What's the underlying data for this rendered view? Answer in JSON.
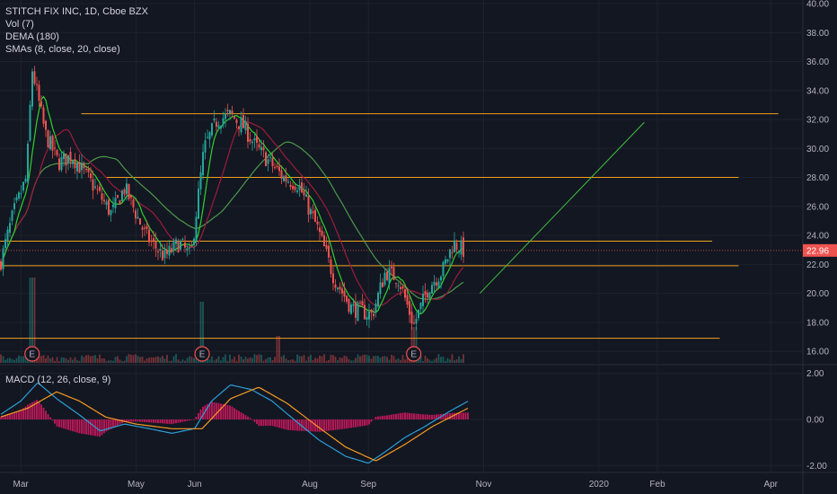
{
  "chart_data": [
    {
      "type": "candlestick",
      "title": "STITCH FIX INC, 1D, Cboe BZX",
      "indicators": [
        "Vol (7)",
        "DEMA (180)",
        "SMAs (8, close, 20, close)"
      ],
      "last_price": 22.96,
      "ylim": [
        15.2,
        40.0
      ],
      "y_ticks": [
        "40.00",
        "38.00",
        "36.00",
        "34.00",
        "32.00",
        "30.00",
        "28.00",
        "26.00",
        "24.00",
        "22.00",
        "20.00",
        "18.00",
        "16.00"
      ],
      "x_ticks": [
        "Mar",
        "May",
        "Jun",
        "Aug",
        "Sep",
        "Nov",
        "2020",
        "Feb",
        "Apr"
      ],
      "earnings_markers": [
        "E",
        "E",
        "E"
      ],
      "price_path": [
        [
          "2019-02-18",
          22.0
        ],
        [
          "2019-02-25",
          25.5
        ],
        [
          "2019-03-04",
          28.0
        ],
        [
          "2019-03-07",
          35.5
        ],
        [
          "2019-03-14",
          31.0
        ],
        [
          "2019-03-21",
          29.0
        ],
        [
          "2019-03-28",
          29.5
        ],
        [
          "2019-04-08",
          27.5
        ],
        [
          "2019-04-18",
          25.5
        ],
        [
          "2019-04-25",
          27.3
        ],
        [
          "2019-05-06",
          24.0
        ],
        [
          "2019-05-16",
          22.5
        ],
        [
          "2019-05-24",
          23.5
        ],
        [
          "2019-05-30",
          22.5
        ],
        [
          "2019-06-06",
          30.0
        ],
        [
          "2019-06-13",
          32.0
        ],
        [
          "2019-06-20",
          32.3
        ],
        [
          "2019-06-27",
          31.5
        ],
        [
          "2019-07-04",
          30.0
        ],
        [
          "2019-07-18",
          28.0
        ],
        [
          "2019-07-26",
          27.5
        ],
        [
          "2019-08-05",
          24.5
        ],
        [
          "2019-08-14",
          21.0
        ],
        [
          "2019-08-23",
          19.0
        ],
        [
          "2019-09-03",
          18.5
        ],
        [
          "2019-09-10",
          21.5
        ],
        [
          "2019-09-17",
          21.0
        ],
        [
          "2019-09-25",
          17.8
        ],
        [
          "2019-10-03",
          20.5
        ],
        [
          "2019-10-10",
          21.5
        ],
        [
          "2019-10-16",
          23.5
        ],
        [
          "2019-10-22",
          22.9
        ]
      ],
      "horizontal_lines": [
        {
          "y": 32.4,
          "from": "2019-04-02",
          "to": "2020-04-05"
        },
        {
          "y": 28.0,
          "from": "2019-04-15",
          "to": "2020-03-15"
        },
        {
          "y": 23.6,
          "from": "2019-02-18",
          "to": "2020-03-01"
        },
        {
          "y": 21.9,
          "from": "2019-02-18",
          "to": "2020-03-15"
        },
        {
          "y": 16.9,
          "from": "2019-02-18",
          "to": "2020-03-05"
        }
      ],
      "projection_line": {
        "from": [
          "2019-10-30",
          20.0
        ],
        "to": [
          "2020-01-25",
          31.8
        ]
      },
      "colors": {
        "up": "#26a69a",
        "down": "#ef5350",
        "level": "#f0a020",
        "sma_fast": "#2fd12f",
        "sma_slow": "#9c1c3c",
        "dema": "#4a9a4a",
        "projection": "#3fbf3f",
        "last_price": "#ef5350"
      }
    },
    {
      "type": "histogram",
      "title": "MACD (12, 26, close, 9)",
      "ylim": [
        -2.3,
        2.3
      ],
      "y_ticks": [
        "2.00",
        "0.00",
        "-2.00"
      ],
      "macd_path": [
        [
          "2019-02-18",
          0.2
        ],
        [
          "2019-03-01",
          0.8
        ],
        [
          "2019-03-10",
          1.6
        ],
        [
          "2019-03-20",
          0.9
        ],
        [
          "2019-04-01",
          0.2
        ],
        [
          "2019-04-12",
          -0.5
        ],
        [
          "2019-04-25",
          -0.2
        ],
        [
          "2019-05-08",
          -0.4
        ],
        [
          "2019-05-20",
          -0.6
        ],
        [
          "2019-06-01",
          -0.4
        ],
        [
          "2019-06-10",
          0.8
        ],
        [
          "2019-06-20",
          1.5
        ],
        [
          "2019-07-01",
          1.3
        ],
        [
          "2019-07-12",
          0.8
        ],
        [
          "2019-07-25",
          -0.1
        ],
        [
          "2019-08-06",
          -0.9
        ],
        [
          "2019-08-20",
          -1.6
        ],
        [
          "2019-09-01",
          -1.9
        ],
        [
          "2019-09-10",
          -1.4
        ],
        [
          "2019-09-20",
          -0.8
        ],
        [
          "2019-10-01",
          -0.3
        ],
        [
          "2019-10-15",
          0.4
        ],
        [
          "2019-10-24",
          0.8
        ]
      ],
      "signal_path": [
        [
          "2019-02-18",
          0.1
        ],
        [
          "2019-03-05",
          0.5
        ],
        [
          "2019-03-20",
          1.2
        ],
        [
          "2019-04-01",
          0.8
        ],
        [
          "2019-04-15",
          0.1
        ],
        [
          "2019-05-01",
          -0.2
        ],
        [
          "2019-05-20",
          -0.4
        ],
        [
          "2019-06-05",
          -0.4
        ],
        [
          "2019-06-20",
          0.9
        ],
        [
          "2019-07-05",
          1.4
        ],
        [
          "2019-07-20",
          0.7
        ],
        [
          "2019-08-05",
          -0.3
        ],
        [
          "2019-08-20",
          -1.2
        ],
        [
          "2019-09-05",
          -1.8
        ],
        [
          "2019-09-20",
          -1.1
        ],
        [
          "2019-10-05",
          -0.3
        ],
        [
          "2019-10-24",
          0.5
        ]
      ],
      "colors": {
        "macd": "#2a9fd8",
        "signal": "#f59a23",
        "hist": "#c2185b"
      }
    }
  ]
}
